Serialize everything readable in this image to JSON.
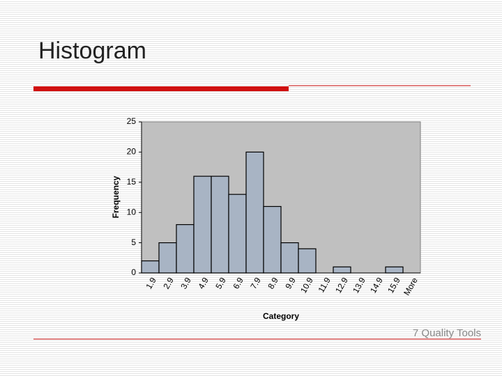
{
  "slide": {
    "title": "Histogram",
    "footer": "7 Quality Tools"
  },
  "chart_data": {
    "type": "bar",
    "xlabel": "Category",
    "ylabel": "Frequency",
    "categories": [
      "1.9",
      "2.9",
      "3.9",
      "4.9",
      "5.9",
      "6.9",
      "7.9",
      "8.9",
      "9.9",
      "10.9",
      "11.9",
      "12.9",
      "13.9",
      "14.9",
      "15.9",
      "More"
    ],
    "values": [
      2,
      5,
      8,
      16,
      16,
      13,
      20,
      11,
      5,
      4,
      0,
      1,
      0,
      0,
      1,
      0
    ],
    "color": "#a8b4c4",
    "plot_background": "#c0c0c0",
    "ylim": [
      0,
      25
    ],
    "yticks": [
      0,
      5,
      10,
      15,
      20,
      25
    ],
    "grid": false
  }
}
